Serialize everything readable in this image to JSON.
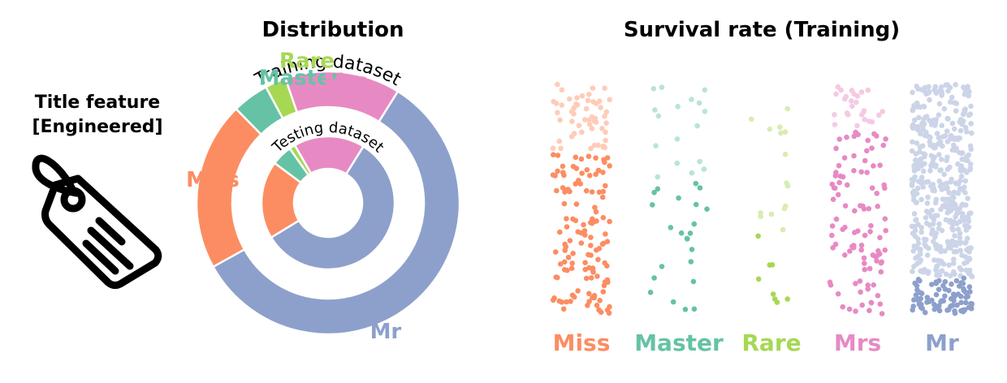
{
  "feature": {
    "title_line1": "Title feature",
    "title_line2": "[Engineered]",
    "icon": "price-tag-icon"
  },
  "colors": {
    "Mr": "#8DA0CB",
    "Miss": "#FC8D62",
    "Master": "#66C2A5",
    "Rare": "#A6D854",
    "Mrs": "#E78AC3"
  },
  "chart_data": [
    {
      "type": "donut",
      "title": "Distribution",
      "categories": [
        "Mr",
        "Miss",
        "Master",
        "Rare",
        "Mrs"
      ],
      "series": [
        {
          "name": "Training dataset",
          "values": [
            517,
            185,
            40,
            23,
            126
          ]
        },
        {
          "name": "Testing dataset",
          "values": [
            240,
            79,
            21,
            6,
            72
          ]
        }
      ]
    },
    {
      "type": "scatter",
      "title": "Survival rate (Training)",
      "categories": [
        "Miss",
        "Master",
        "Rare",
        "Mrs",
        "Mr"
      ],
      "survived": [
        127,
        23,
        8,
        99,
        81
      ],
      "died": [
        55,
        17,
        15,
        26,
        436
      ]
    }
  ]
}
